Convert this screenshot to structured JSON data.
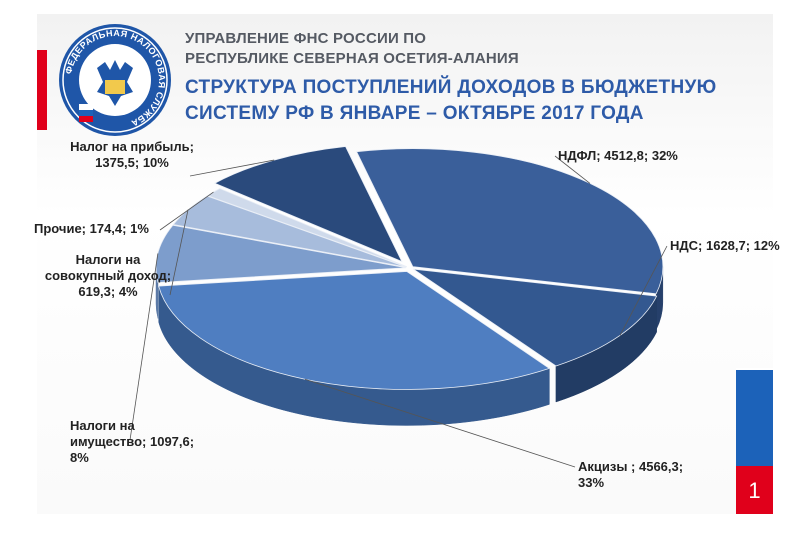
{
  "header": {
    "org_line1": "УПРАВЛЕНИЕ ФНС РОССИИ ПО",
    "org_line2": "РЕСПУБЛИКЕ СЕВЕРНАЯ ОСЕТИЯ-АЛАНИЯ"
  },
  "logo": {
    "icon": "fns-emblem-icon",
    "ring_text": "ФЕДЕРАЛЬНАЯ НАЛОГОВАЯ СЛУЖБА"
  },
  "page_number": "1",
  "colors": {
    "accent_red": "#e0001b",
    "accent_blue": "#1c62b9",
    "title_blue": "#2e5ba8"
  },
  "chart_data": {
    "type": "pie",
    "title_line1": "СТРУКТУРА ПОСТУПЛЕНИЙ ДОХОДОВ В БЮДЖЕТНУЮ",
    "title_line2": "СИСТЕМУ РФ В ЯНВАРЕ – ОКТЯБРЕ 2017 ГОДА",
    "slices": [
      {
        "name": "НДФЛ",
        "value": 4512.8,
        "percent": 32,
        "label_lines": [
          "НДФЛ; 4512,8; 32%"
        ],
        "color": "#3a5f9a",
        "side": "#26406b"
      },
      {
        "name": "НДС",
        "value": 1628.7,
        "percent": 12,
        "label_lines": [
          "НДС; 1628,7; 12%"
        ],
        "color": "#335890",
        "side": "#223c64"
      },
      {
        "name": "Акцизы",
        "value": 4566.3,
        "percent": 33,
        "label_lines": [
          "Акцизы ; 4566,3;",
          "33%"
        ],
        "color": "#4f7ec1",
        "side": "#355a8e"
      },
      {
        "name": "Налоги на имущество",
        "value": 1097.6,
        "percent": 8,
        "label_lines": [
          "Налоги на",
          "имущество; 1097,6;",
          "8%"
        ],
        "color": "#7d9dcc",
        "side": "#5a79a6"
      },
      {
        "name": "Налоги на совокупный доход",
        "value": 619.3,
        "percent": 4,
        "label_lines": [
          "Налоги на",
          "совокупный доход;",
          "619,3; 4%"
        ],
        "color": "#a7bcdc",
        "side": "#7f95b8"
      },
      {
        "name": "Прочие",
        "value": 174.4,
        "percent": 1,
        "label_lines": [
          "Прочие; 174,4; 1%"
        ],
        "color": "#cfdaeb",
        "side": "#9aa9c2"
      },
      {
        "name": "Налог на прибыль",
        "value": 1375.5,
        "percent": 10,
        "label_lines": [
          "Налог на прибыль;",
          "1375,5; 10%"
        ],
        "color": "#2a4a7c",
        "side": "#1b3257"
      }
    ]
  }
}
